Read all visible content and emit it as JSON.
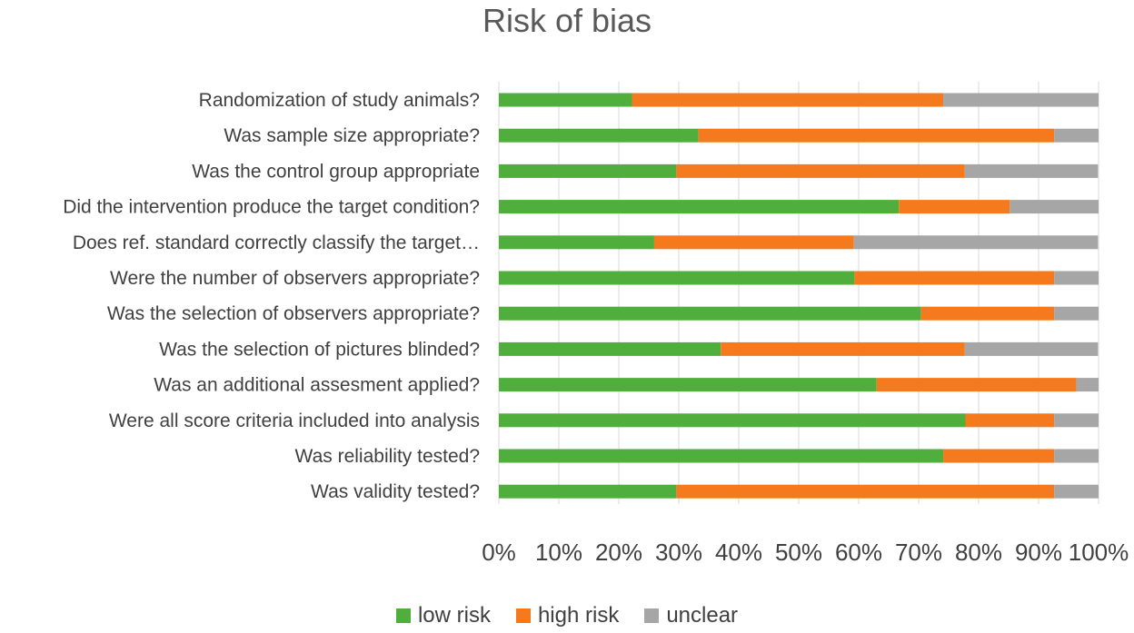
{
  "chart_data": {
    "type": "bar",
    "orientation": "horizontal",
    "stacked": "percent",
    "title": "Risk of bias",
    "categories": [
      "Randomization of study animals?",
      "Was sample size appropriate?",
      "Was the control group appropriate",
      "Did the intervention produce the target condition?",
      "Does ref. standard correctly classify the target…",
      "Were the number of observers appropriate?",
      "Was the selection of observers appropriate?",
      "Was the selection of pictures blinded?",
      "Was an additional assesment applied?",
      "Were all score criteria included into analysis",
      "Was reliability tested?",
      "Was validity tested?"
    ],
    "series": [
      {
        "name": "low risk",
        "color": "#4fae3c",
        "values": [
          22.2,
          33.3,
          29.6,
          66.7,
          25.9,
          59.3,
          70.4,
          37.0,
          63.0,
          77.8,
          74.1,
          29.6
        ]
      },
      {
        "name": "high risk",
        "color": "#f57a1d",
        "values": [
          51.9,
          59.3,
          48.1,
          18.5,
          33.3,
          33.3,
          22.2,
          40.7,
          33.3,
          14.8,
          18.5,
          63.0
        ]
      },
      {
        "name": "unclear",
        "color": "#a6a6a6",
        "values": [
          25.9,
          7.4,
          22.2,
          14.8,
          40.7,
          7.4,
          7.4,
          22.2,
          3.7,
          7.4,
          7.4,
          7.4
        ]
      }
    ],
    "xticks": [
      "0%",
      "10%",
      "20%",
      "30%",
      "40%",
      "50%",
      "60%",
      "70%",
      "80%",
      "90%",
      "100%"
    ],
    "xlim": [
      0,
      100
    ],
    "grid": true,
    "legend": "bottom"
  }
}
